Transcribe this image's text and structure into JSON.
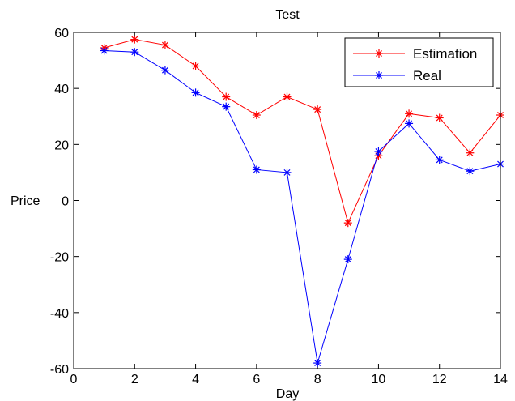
{
  "chart_data": {
    "type": "line",
    "title": "Test",
    "xlabel": "Day",
    "ylabel": "Price",
    "xlim": [
      0,
      14
    ],
    "ylim": [
      -60,
      60
    ],
    "xticks": [
      0,
      2,
      4,
      6,
      8,
      10,
      12,
      14
    ],
    "yticks": [
      -60,
      -40,
      -20,
      0,
      20,
      40,
      60
    ],
    "grid": false,
    "legend_position": "top-right",
    "x": [
      1,
      2,
      3,
      4,
      5,
      6,
      7,
      8,
      9,
      10,
      11,
      12,
      13,
      14
    ],
    "series": [
      {
        "name": "Estimation",
        "color": "#ff0000",
        "marker": "asterisk",
        "values": [
          54.5,
          57.5,
          55.5,
          48,
          37,
          30.5,
          37,
          32.5,
          -8,
          16,
          31,
          29.5,
          17,
          30.5
        ]
      },
      {
        "name": "Real",
        "color": "#0000ff",
        "marker": "asterisk",
        "values": [
          53.5,
          53,
          46.5,
          38.5,
          33.5,
          11,
          10,
          -58,
          -21,
          17.5,
          27.5,
          14.5,
          10.5,
          13
        ]
      }
    ]
  }
}
